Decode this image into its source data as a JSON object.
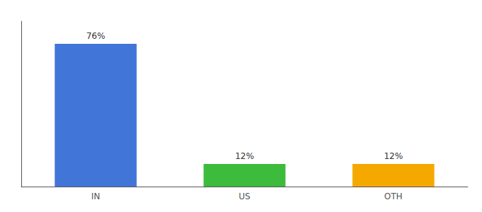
{
  "chart_data": {
    "type": "bar",
    "categories": [
      "IN",
      "US",
      "OTH"
    ],
    "values": [
      76,
      12,
      12
    ],
    "value_labels": [
      "76%",
      "12%",
      "12%"
    ],
    "colors": [
      "#4275d8",
      "#3dbb3d",
      "#f5a800"
    ],
    "ylim": [
      0,
      88
    ],
    "data_labels": true,
    "tick_labels": "x",
    "grid": false
  }
}
